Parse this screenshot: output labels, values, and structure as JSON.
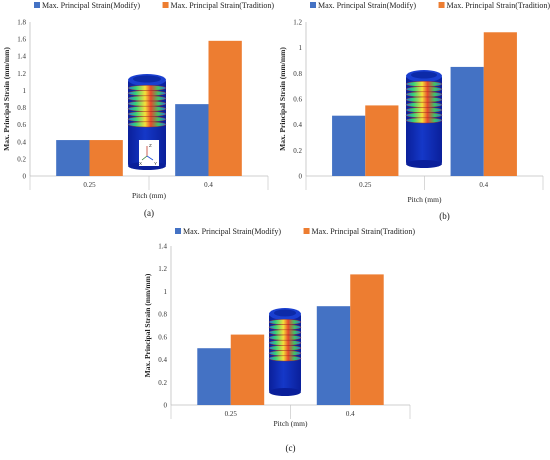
{
  "colors": {
    "modify": "#4472C4",
    "tradition": "#ED7D31",
    "axis": "#bfbfbf",
    "grid": "#d9d9d9"
  },
  "chart_data": [
    {
      "type": "bar",
      "panel_label": "(a)",
      "categories": [
        "0.25",
        "0.4"
      ],
      "series": [
        {
          "name": "Max. Principal Strain(Modify)",
          "values": [
            0.42,
            0.84
          ]
        },
        {
          "name": "Max. Principal Strain(Tradition)",
          "values": [
            0.42,
            1.58
          ]
        }
      ],
      "xlabel": "Pitch (mm)",
      "ylabel": "Max. Principal Strain (mm/mm)",
      "ylim": [
        0,
        1.8
      ],
      "yticks": [
        "0",
        "0.2",
        "0.4",
        "0.6",
        "0.8",
        "1",
        "1.2",
        "1.4",
        "1.6",
        "1.8"
      ],
      "legend": "top",
      "grid": false,
      "inset_axis_labels": [
        "Z",
        "X",
        "Y"
      ]
    },
    {
      "type": "bar",
      "panel_label": "(b)",
      "categories": [
        "0.25",
        "0.4"
      ],
      "series": [
        {
          "name": "Max. Principal Strain(Modify)",
          "values": [
            0.47,
            0.85
          ]
        },
        {
          "name": "Max. Principal Strain(Tradition)",
          "values": [
            0.55,
            1.12
          ]
        }
      ],
      "xlabel": "Pitch (mm)",
      "ylabel": "Max. Principal Strain (mm/mm)",
      "ylim": [
        0,
        1.2
      ],
      "yticks": [
        "0",
        "0.2",
        "0.4",
        "0.6",
        "0.8",
        "1",
        "1.2"
      ],
      "legend": "top",
      "grid": false
    },
    {
      "type": "bar",
      "panel_label": "(c)",
      "categories": [
        "0.25",
        "0.4"
      ],
      "series": [
        {
          "name": "Max. Principal Strain(Modify)",
          "values": [
            0.5,
            0.87
          ]
        },
        {
          "name": "Max. Principal Strain(Tradition)",
          "values": [
            0.62,
            1.15
          ]
        }
      ],
      "xlabel": "Pitch (mm)",
      "ylabel": "Max. Principal Strain (mm/mm)",
      "ylim": [
        0,
        1.4
      ],
      "yticks": [
        "0",
        "0.2",
        "0.4",
        "0.6",
        "0.8",
        "1",
        "1.2",
        "1.4"
      ],
      "legend": "top",
      "grid": false
    }
  ]
}
